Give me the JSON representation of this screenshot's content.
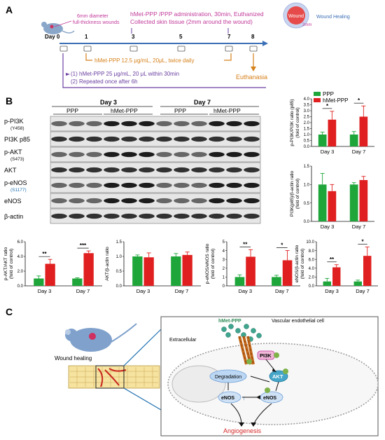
{
  "panelA": {
    "label": "A",
    "days": [
      "Day 0",
      "1",
      "3",
      "5",
      "7",
      "8"
    ],
    "wound_note_line1": "6mm diameter",
    "wound_note_line2": "full-thickness wounds",
    "admin_line1": "hMet-PPP /PPP administration, 30min, Euthanized",
    "admin_line2": "Collected skin tissue (2mm around the wound)",
    "dose_daily": "hMet-PPP 12.5 μg/mL, 20μL, twice daily",
    "dose_step1": "(1) hMet-PPP 25 μg/mL, 20 μL within 30min",
    "dose_step2": "(2) Repeated once after 6h",
    "euthanasia": "Euthanasia",
    "wound_label": "Wound",
    "wound_margin": "2mm",
    "wound_healing": "Wound Healing",
    "colors": {
      "pink": "#c0399a",
      "orange": "#d6801a",
      "purple": "#6a3fa0",
      "blue": "#3b6fb6"
    }
  },
  "panelB": {
    "label": "B",
    "blot": {
      "day3": "Day 3",
      "day7": "Day 7",
      "groups": [
        "PPP",
        "hMet-PPP",
        "PPP",
        "hMet-PPP"
      ],
      "rows": [
        {
          "name": "p-PI3K",
          "sub": "(Y458)"
        },
        {
          "name": "PI3K p85",
          "sub": ""
        },
        {
          "name": "p-AKT",
          "sub": "(S473)"
        },
        {
          "name": "AKT",
          "sub": ""
        },
        {
          "name": "p-eNOS",
          "sub": "(S1177)"
        },
        {
          "name": "eNOS",
          "sub": ""
        },
        {
          "name": "β-actin",
          "sub": ""
        }
      ]
    },
    "legend": {
      "ppp": "PPP",
      "hmet": "hMet-PPP"
    },
    "colors": {
      "ppp": "#1fa63a",
      "hmet": "#e02020"
    }
  },
  "chart_data": [
    {
      "type": "bar",
      "ylabel": "p-PI3K/PI3K ratio (p85)",
      "ylabel2": "(fold of control)",
      "categories": [
        "Day 3",
        "Day 7"
      ],
      "ylim": [
        0,
        4
      ],
      "yticks": [
        "0.0",
        "0.5",
        "1.0",
        "1.5",
        "2.0",
        "2.5",
        "3.0",
        "3.5",
        "4.0"
      ],
      "series": [
        {
          "name": "PPP",
          "values": [
            1.0,
            1.0
          ],
          "err": [
            0.2,
            0.25
          ]
        },
        {
          "name": "hMet-PPP",
          "values": [
            2.25,
            2.5
          ],
          "err": [
            0.7,
            0.9
          ]
        }
      ],
      "sig": [
        "*",
        "*"
      ]
    },
    {
      "type": "bar",
      "ylabel": "PI3K(p85)/β-actin ratio",
      "ylabel2": "(fold of control)",
      "categories": [
        "Day 3",
        "Day 7"
      ],
      "ylim": [
        0,
        1.5
      ],
      "yticks": [
        "0.0",
        "0.5",
        "1.0",
        "1.5"
      ],
      "series": [
        {
          "name": "PPP",
          "values": [
            1.0,
            1.0
          ],
          "err": [
            0.3,
            0.05
          ]
        },
        {
          "name": "hMet-PPP",
          "values": [
            0.82,
            1.12
          ],
          "err": [
            0.18,
            0.1
          ]
        }
      ],
      "sig": [
        "",
        ""
      ]
    },
    {
      "type": "bar",
      "ylabel": "p-AKT/AKT ratio",
      "ylabel2": "(fold of control)",
      "categories": [
        "Day 3",
        "Day 7"
      ],
      "ylim": [
        0,
        6
      ],
      "yticks": [
        "0.0",
        "2.0",
        "4.0",
        "6.0"
      ],
      "series": [
        {
          "name": "PPP",
          "values": [
            1.0,
            1.0
          ],
          "err": [
            0.35,
            0.1
          ]
        },
        {
          "name": "hMet-PPP",
          "values": [
            3.0,
            4.45
          ],
          "err": [
            0.6,
            0.3
          ]
        }
      ],
      "sig": [
        "**",
        "***"
      ]
    },
    {
      "type": "bar",
      "ylabel": "AKT/β-actin ratio",
      "ylabel2": "",
      "categories": [
        "Day 3",
        "Day 7"
      ],
      "ylim": [
        0,
        1.5
      ],
      "yticks": [
        "0.0",
        "0.5",
        "1.0",
        "1.5"
      ],
      "series": [
        {
          "name": "PPP",
          "values": [
            1.0,
            1.0
          ],
          "err": [
            0.05,
            0.1
          ]
        },
        {
          "name": "hMet-PPP",
          "values": [
            0.97,
            1.05
          ],
          "err": [
            0.15,
            0.1
          ]
        }
      ],
      "sig": [
        "",
        ""
      ]
    },
    {
      "type": "bar",
      "ylabel": "p-eNOS/eNOS ratio",
      "ylabel2": "(fold of control)",
      "categories": [
        "Day 3",
        "Day 7"
      ],
      "ylim": [
        0,
        5
      ],
      "yticks": [
        "0",
        "1",
        "2",
        "3",
        "4",
        "5"
      ],
      "series": [
        {
          "name": "PPP",
          "values": [
            1.0,
            1.0
          ],
          "err": [
            0.25,
            0.2
          ]
        },
        {
          "name": "hMet-PPP",
          "values": [
            3.3,
            2.9
          ],
          "err": [
            0.8,
            1.1
          ]
        }
      ],
      "sig": [
        "**",
        "*"
      ]
    },
    {
      "type": "bar",
      "ylabel": "eNOS/β-actin ratio",
      "ylabel2": "(fold of control)",
      "categories": [
        "Day 3",
        "Day 7"
      ],
      "ylim": [
        0,
        10
      ],
      "yticks": [
        "0.0",
        "2.0",
        "4.0",
        "6.0",
        "8.0",
        "10.0"
      ],
      "series": [
        {
          "name": "PPP",
          "values": [
            1.0,
            1.0
          ],
          "err": [
            0.7,
            0.3
          ]
        },
        {
          "name": "hMet-PPP",
          "values": [
            4.2,
            6.8
          ],
          "err": [
            0.6,
            2.0
          ]
        }
      ],
      "sig": [
        "**",
        "*"
      ]
    }
  ],
  "panelC": {
    "label": "C",
    "wound_healing": "Wound healing",
    "hmet": "hMet-PPP",
    "vascular": "Vascular endothelial cell",
    "extracellular": "Extracellular",
    "pi3k": "PI3K",
    "akt": "AKT",
    "degradation": "Degradation",
    "enos": "eNOS",
    "angiogenesis": "Angiogenesis",
    "p": "P"
  }
}
